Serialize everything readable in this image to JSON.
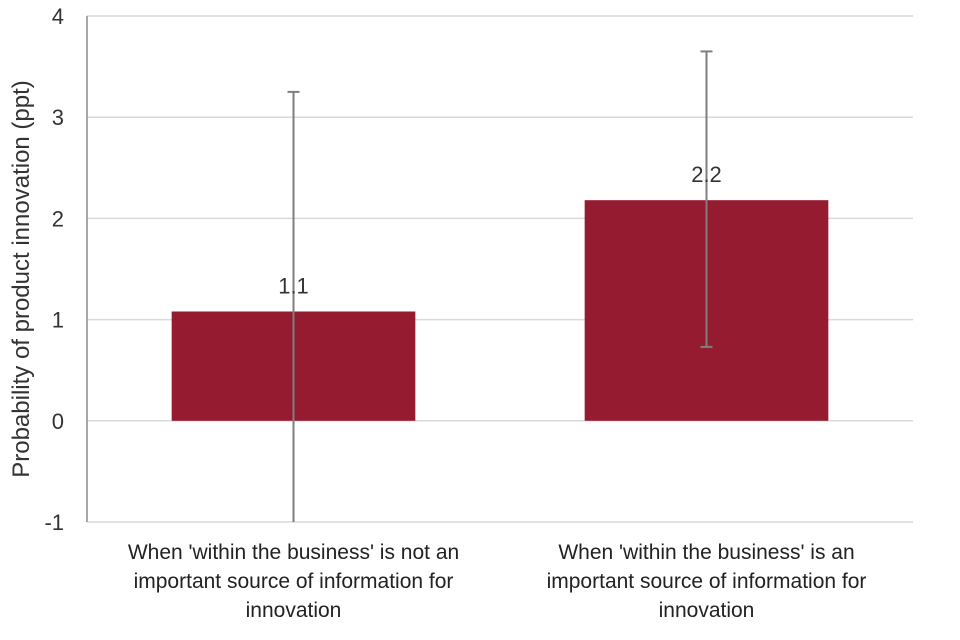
{
  "chart_data": {
    "type": "bar",
    "title": "",
    "xlabel": "",
    "ylabel": "Probability of product innovation (ppt)",
    "ylim": [
      -1,
      4
    ],
    "yticks": [
      -1,
      0,
      1,
      2,
      3,
      4
    ],
    "grid": true,
    "categories": [
      [
        "When 'within the business' is not an",
        "important source of information for",
        "innovation"
      ],
      [
        "When 'within the business' is an",
        "important source of information for",
        "innovation"
      ]
    ],
    "values": [
      1.08,
      2.18
    ],
    "data_labels": [
      "1.1",
      "2.2"
    ],
    "error_bars": [
      {
        "low": -1.0,
        "high": 3.25
      },
      {
        "low": 0.73,
        "high": 3.65
      }
    ],
    "colors": {
      "bar": "#951b31",
      "error_bar": "#7f7f7f",
      "grid": "#d9d9d9",
      "axis": "#8c8c8c"
    }
  }
}
